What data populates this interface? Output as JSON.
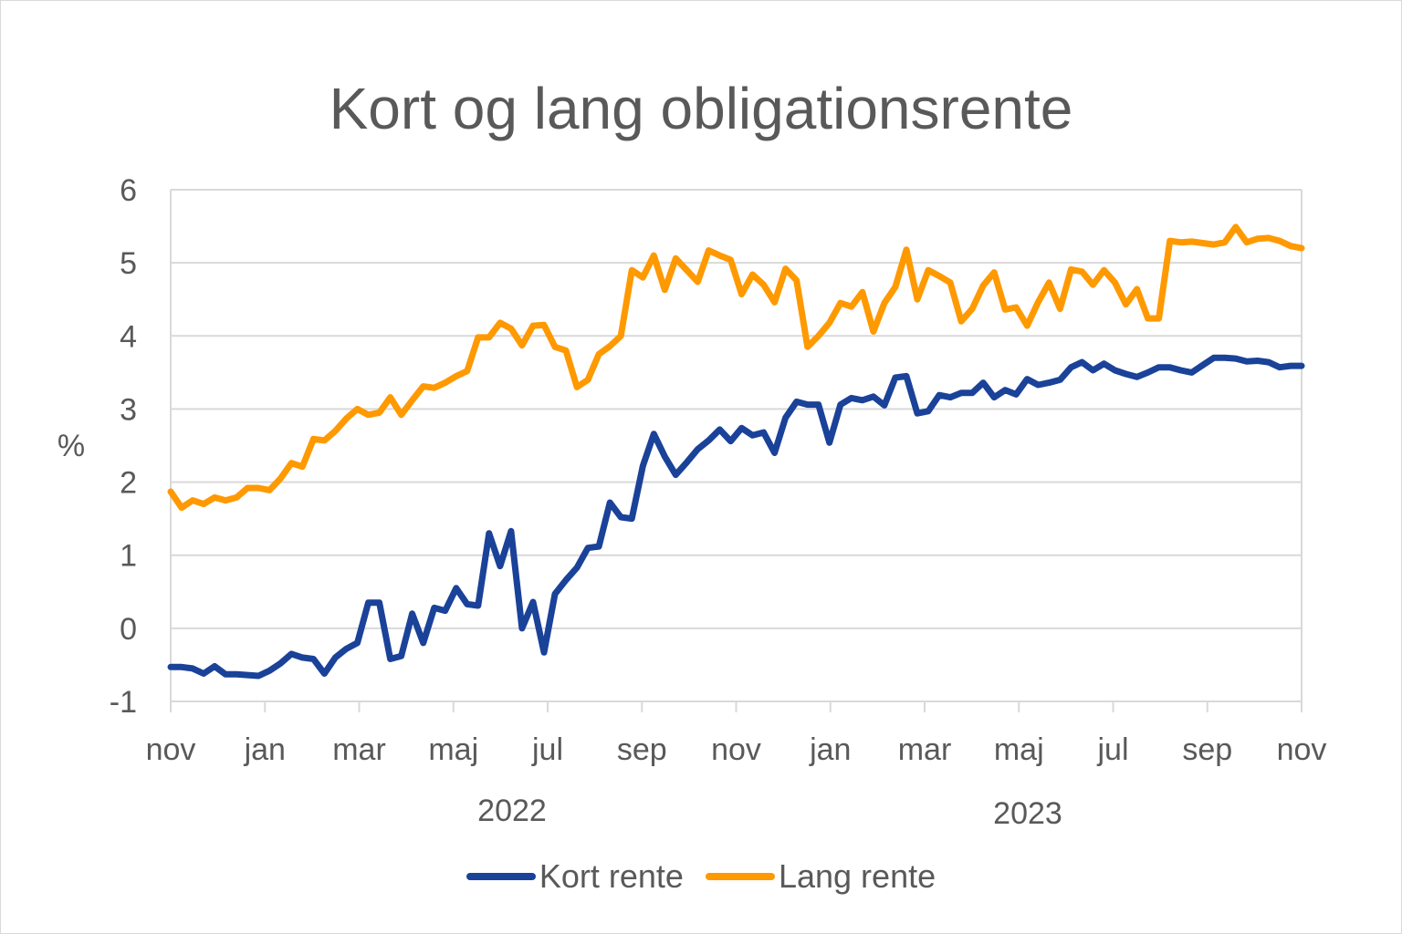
{
  "chart_data": {
    "type": "line",
    "title": "Kort og lang obligationsrente",
    "ylabel": "%",
    "xlabel": "",
    "ylim": [
      -1,
      6
    ],
    "yticks": [
      -1,
      0,
      1,
      2,
      3,
      4,
      5,
      6
    ],
    "grid": true,
    "legend_position": "bottom",
    "x_month_ticks": [
      "nov",
      "jan",
      "mar",
      "maj",
      "jul",
      "sep",
      "nov",
      "jan",
      "mar",
      "maj",
      "jul",
      "sep",
      "nov"
    ],
    "year_labels": [
      {
        "label": "2022",
        "near": "maj"
      },
      {
        "label": "2023",
        "near": "maj"
      }
    ],
    "x_range": "nov 2021 – nov 2023 (weekly)",
    "series": [
      {
        "name": "Kort rente",
        "color": "#1a4299",
        "values": [
          -0.53,
          -0.53,
          -0.55,
          -0.62,
          -0.52,
          -0.63,
          -0.63,
          -0.64,
          -0.65,
          -0.58,
          -0.48,
          -0.35,
          -0.4,
          -0.42,
          -0.62,
          -0.4,
          -0.28,
          -0.2,
          0.35,
          0.35,
          -0.42,
          -0.38,
          0.2,
          -0.2,
          0.28,
          0.24,
          0.55,
          0.33,
          0.31,
          1.3,
          0.85,
          1.33,
          0.0,
          0.36,
          -0.33,
          0.47,
          0.66,
          0.83,
          1.1,
          1.12,
          1.72,
          1.52,
          1.5,
          2.22,
          2.66,
          2.35,
          2.1,
          2.27,
          2.45,
          2.57,
          2.72,
          2.56,
          2.74,
          2.64,
          2.68,
          2.4,
          2.88,
          3.1,
          3.06,
          3.06,
          2.54,
          3.06,
          3.15,
          3.12,
          3.17,
          3.05,
          3.43,
          3.45,
          2.94,
          2.97,
          3.19,
          3.16,
          3.22,
          3.22,
          3.36,
          3.16,
          3.26,
          3.2,
          3.41,
          3.33,
          3.36,
          3.4,
          3.57,
          3.64,
          3.53,
          3.62,
          3.53,
          3.48,
          3.44,
          3.5,
          3.57,
          3.57,
          3.53,
          3.5,
          3.6,
          3.7,
          3.7,
          3.69,
          3.65,
          3.66,
          3.64,
          3.57,
          3.59,
          3.59
        ],
        "note": "weekly approx values read from chart"
      },
      {
        "name": "Lang rente",
        "color": "#ff9900",
        "values": [
          1.87,
          1.65,
          1.75,
          1.7,
          1.79,
          1.75,
          1.79,
          1.92,
          1.92,
          1.89,
          2.05,
          2.26,
          2.21,
          2.59,
          2.57,
          2.7,
          2.87,
          3.0,
          2.92,
          2.95,
          3.16,
          2.92,
          3.12,
          3.31,
          3.29,
          3.36,
          3.45,
          3.52,
          3.98,
          3.98,
          4.18,
          4.1,
          3.87,
          4.14,
          4.15,
          3.85,
          3.8,
          3.3,
          3.4,
          3.75,
          3.86,
          4.0,
          4.9,
          4.8,
          5.1,
          4.63,
          5.06,
          4.9,
          4.74,
          5.17,
          5.1,
          5.04,
          4.57,
          4.84,
          4.7,
          4.46,
          4.92,
          4.76,
          3.85,
          4.0,
          4.18,
          4.45,
          4.4,
          4.6,
          4.06,
          4.45,
          4.67,
          5.18,
          4.5,
          4.9,
          4.82,
          4.73,
          4.2,
          4.37,
          4.69,
          4.87,
          4.36,
          4.39,
          4.14,
          4.46,
          4.73,
          4.37,
          4.91,
          4.88,
          4.7,
          4.9,
          4.73,
          4.43,
          4.64,
          4.24,
          4.24,
          5.3,
          5.28,
          5.29,
          5.27,
          5.25,
          5.28,
          5.49,
          5.28,
          5.33,
          5.34,
          5.3,
          5.23,
          5.2
        ]
      }
    ]
  },
  "legend": {
    "items": [
      {
        "label": "Kort rente",
        "color": "#1a4299"
      },
      {
        "label": "Lang rente",
        "color": "#ff9900"
      }
    ]
  }
}
